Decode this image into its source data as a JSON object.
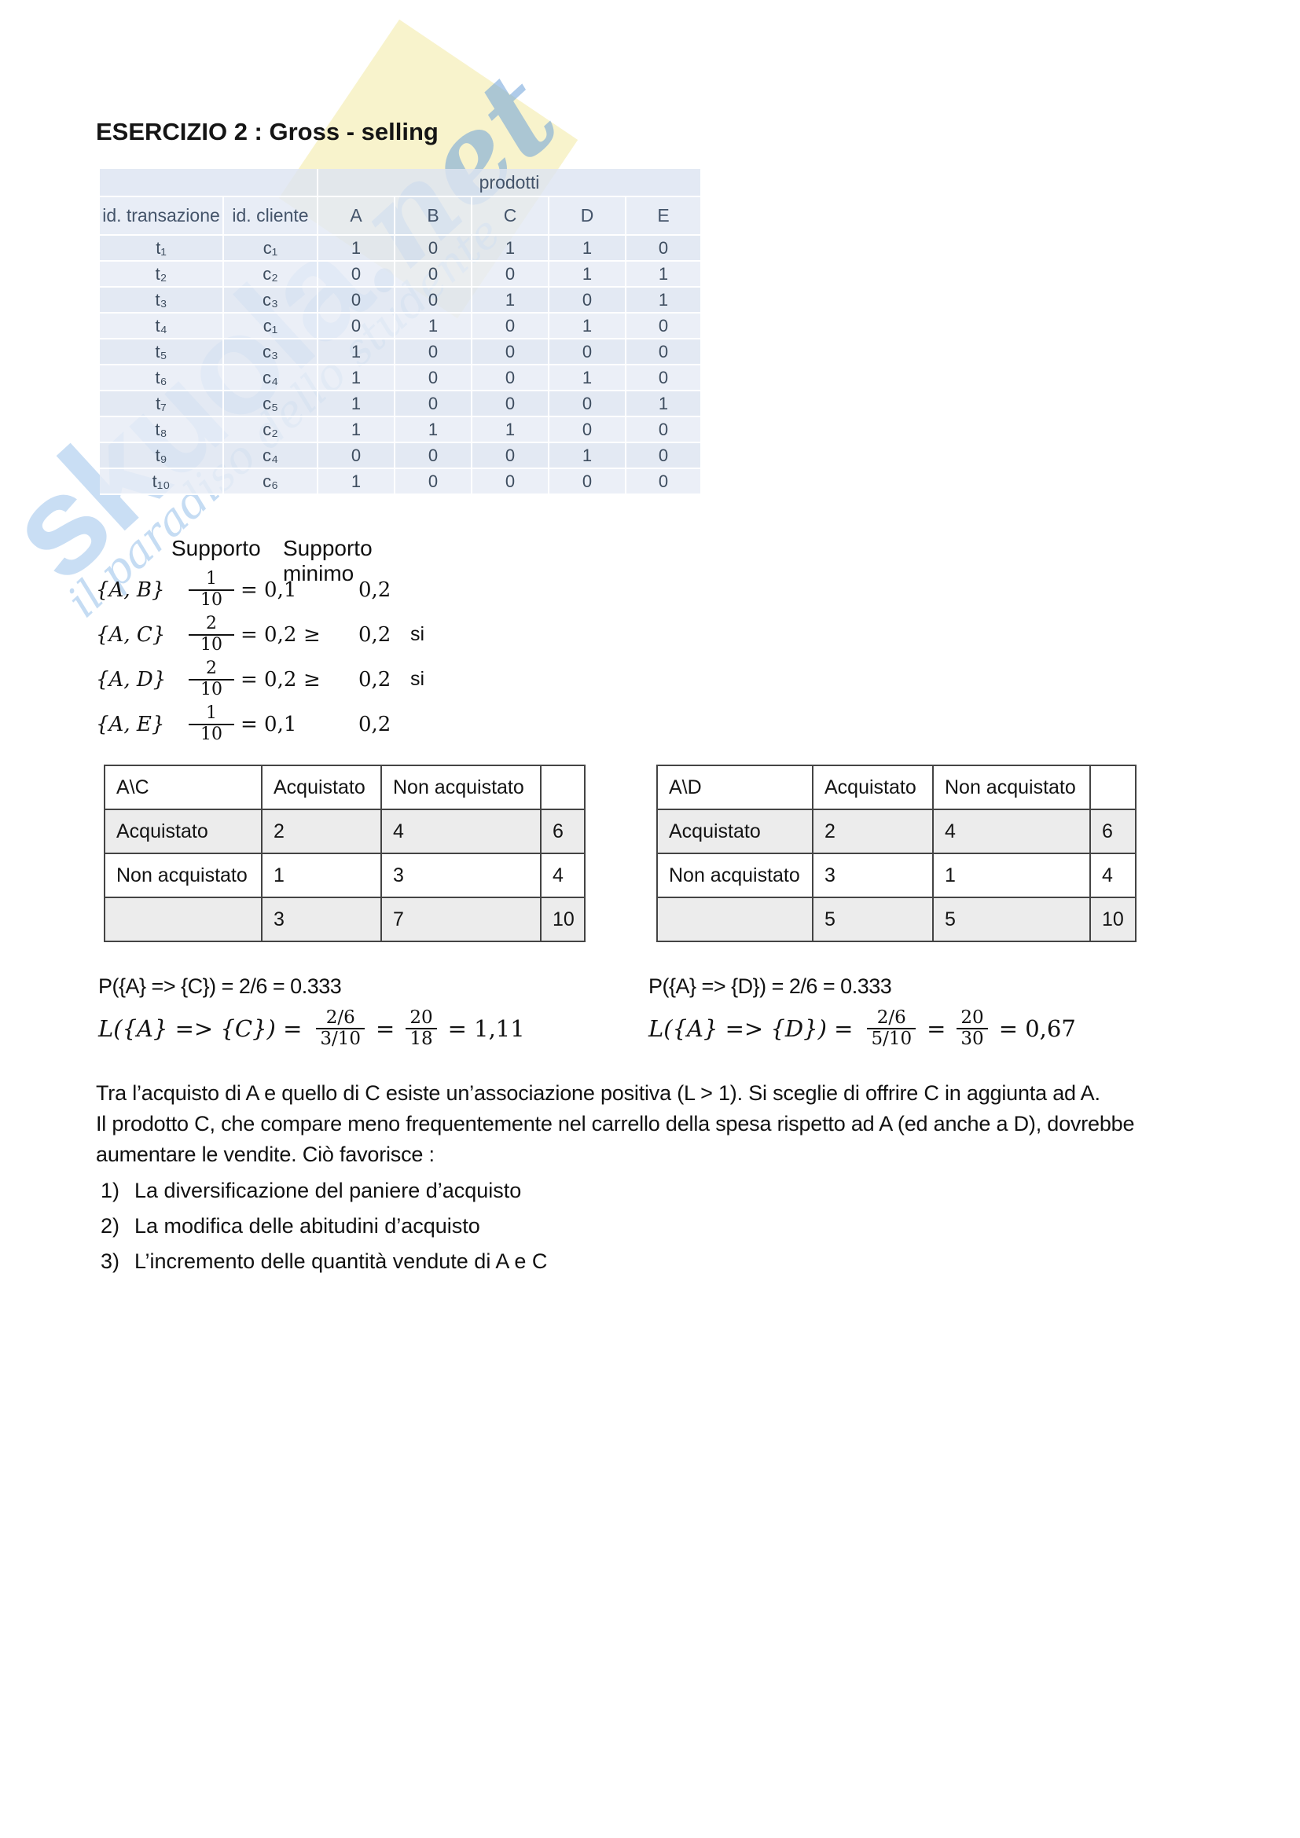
{
  "title": "ESERCIZIO 2 : Gross - selling",
  "watermark": {
    "brand": "skuola",
    "suffix": ".net",
    "tagline": "il paradiso dello studente",
    "brand_color": "#8ebbe7",
    "diamond_color": "#f7f2c6"
  },
  "transactions": {
    "group_header": "prodotti",
    "columns": [
      "id. transazione",
      "id. cliente",
      "A",
      "B",
      "C",
      "D",
      "E"
    ],
    "rows": [
      [
        "t₁",
        "c₁",
        "1",
        "0",
        "1",
        "1",
        "0"
      ],
      [
        "t₂",
        "c₂",
        "0",
        "0",
        "0",
        "1",
        "1"
      ],
      [
        "t₃",
        "c₃",
        "0",
        "0",
        "1",
        "0",
        "1"
      ],
      [
        "t₄",
        "c₁",
        "0",
        "1",
        "0",
        "1",
        "0"
      ],
      [
        "t₅",
        "c₃",
        "1",
        "0",
        "0",
        "0",
        "0"
      ],
      [
        "t₆",
        "c₄",
        "1",
        "0",
        "0",
        "1",
        "0"
      ],
      [
        "t₇",
        "c₅",
        "1",
        "0",
        "0",
        "0",
        "1"
      ],
      [
        "t₈",
        "c₂",
        "1",
        "1",
        "1",
        "0",
        "0"
      ],
      [
        "t₉",
        "c₄",
        "0",
        "0",
        "0",
        "1",
        "0"
      ],
      [
        "t₁₀",
        "c₆",
        "1",
        "0",
        "0",
        "0",
        "0"
      ]
    ]
  },
  "support": {
    "header_supporto": "Supporto",
    "header_minimo": "Supporto minimo",
    "rows": [
      {
        "set": "{A, B}",
        "num": "1",
        "den": "10",
        "eq": "= 0,1",
        "geq": "",
        "min": "0,2",
        "si": ""
      },
      {
        "set": "{A, C}",
        "num": "2",
        "den": "10",
        "eq": "= 0,2",
        "geq": "≥",
        "min": "0,2",
        "si": "si"
      },
      {
        "set": "{A, D}",
        "num": "2",
        "den": "10",
        "eq": "= 0,2",
        "geq": "≥",
        "min": "0,2",
        "si": "si"
      },
      {
        "set": "{A, E}",
        "num": "1",
        "den": "10",
        "eq": "= 0,1",
        "geq": "",
        "min": "0,2",
        "si": ""
      }
    ]
  },
  "contingency_ac": {
    "rows": [
      [
        "A\\C",
        "Acquistato",
        "Non acquistato",
        ""
      ],
      [
        "Acquistato",
        "2",
        "4",
        "6"
      ],
      [
        "Non acquistato",
        "1",
        "3",
        "4"
      ],
      [
        "",
        "3",
        "7",
        "10"
      ]
    ]
  },
  "contingency_ad": {
    "rows": [
      [
        "A\\D",
        "Acquistato",
        "Non acquistato",
        ""
      ],
      [
        "Acquistato",
        "2",
        "4",
        "6"
      ],
      [
        "Non acquistato",
        "3",
        "1",
        "4"
      ],
      [
        "",
        "5",
        "5",
        "10"
      ]
    ]
  },
  "lift_ac": {
    "p_line": "P({A} => {C}) = 2/6 = 0.333",
    "l_prefix": "L({A} => {C}) =",
    "frac1_num": "2/6",
    "frac1_den": "3/10",
    "eq": "=",
    "frac2_num": "20",
    "frac2_den": "18",
    "result": "= 1,11"
  },
  "lift_ad": {
    "p_line": "P({A} => {D}) = 2/6 = 0.333",
    "l_prefix": "L({A} => {D}) =",
    "frac1_num": "2/6",
    "frac1_den": "5/10",
    "eq": "=",
    "frac2_num": "20",
    "frac2_den": "30",
    "result": "= 0,67"
  },
  "discussion": {
    "line1": "Tra l’acquisto di A e quello di C esiste un’associazione positiva (L > 1). Si sceglie di offrire C in aggiunta ad A.",
    "line2": "Il prodotto C, che compare meno frequentemente nel carrello della spesa rispetto ad A (ed anche a D), dovrebbe",
    "line3": "aumentare le vendite. Ciò favorisce :"
  },
  "conclusions": [
    {
      "num": "1)",
      "text": "La diversificazione del paniere d’acquisto"
    },
    {
      "num": "2)",
      "text": "La modifica delle abitudini d’acquisto"
    },
    {
      "num": "3)",
      "text": "L’incremento delle quantità vendute di A e C"
    }
  ]
}
